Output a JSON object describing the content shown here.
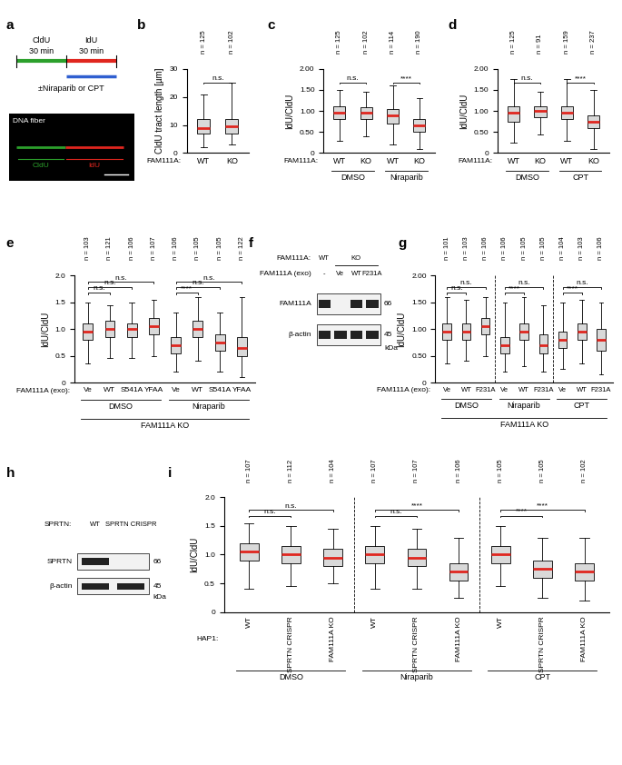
{
  "chart_data": [
    {
      "panel": "b",
      "type": "box",
      "ylabel": "CldU tract length [µm]",
      "row_label": "FAM111A:",
      "categories": [
        "WT",
        "KO"
      ],
      "n_labels": [
        "n = 125",
        "n = 102"
      ],
      "median": [
        9.0,
        9.5
      ],
      "q1": [
        7.0,
        7.0
      ],
      "q3": [
        12.0,
        12.0
      ],
      "min": [
        2.0,
        3.0
      ],
      "max": [
        21.0,
        25.0
      ],
      "ylim": [
        0,
        30
      ],
      "yticks": [
        0,
        10,
        20,
        30
      ],
      "comparisons": [
        {
          "between": [
            0,
            1
          ],
          "label": "n.s."
        }
      ]
    },
    {
      "panel": "c",
      "type": "box",
      "ylabel": "IdU/CldU",
      "row_label": "FAM111A:",
      "categories": [
        "WT",
        "KO",
        "WT",
        "KO"
      ],
      "n_labels": [
        "n = 125",
        "n = 102",
        "n = 114",
        "n = 190"
      ],
      "groups": [
        {
          "label": "DMSO",
          "count": 2
        },
        {
          "label": "Niraparib",
          "count": 2
        }
      ],
      "median": [
        0.95,
        0.95,
        0.9,
        0.65
      ],
      "q1": [
        0.8,
        0.8,
        0.7,
        0.5
      ],
      "q3": [
        1.1,
        1.08,
        1.05,
        0.8
      ],
      "min": [
        0.3,
        0.4,
        0.2,
        0.1
      ],
      "max": [
        1.5,
        1.45,
        1.6,
        1.3
      ],
      "ylim": [
        0,
        2
      ],
      "yticks": [
        0,
        {
          "value": 0.5,
          "label": "0.50"
        },
        {
          "value": 1,
          "label": "1.00"
        },
        {
          "value": 1.5,
          "label": "1.50"
        },
        {
          "value": 2,
          "label": "2.00"
        }
      ],
      "comparisons": [
        {
          "between": [
            0,
            1
          ],
          "label": "n.s."
        },
        {
          "between": [
            2,
            3
          ],
          "label": "****"
        }
      ]
    },
    {
      "panel": "d",
      "type": "box",
      "ylabel": "IdU/CldU",
      "row_label": "FAM111A:",
      "categories": [
        "WT",
        "KO",
        "WT",
        "KO"
      ],
      "n_labels": [
        "n = 125",
        "n = 91",
        "n = 159",
        "n = 237"
      ],
      "groups": [
        {
          "label": "DMSO",
          "count": 2
        },
        {
          "label": "CPT",
          "count": 2
        }
      ],
      "median": [
        0.95,
        1.0,
        0.95,
        0.75
      ],
      "q1": [
        0.75,
        0.85,
        0.8,
        0.6
      ],
      "q3": [
        1.1,
        1.1,
        1.1,
        0.9
      ],
      "min": [
        0.25,
        0.45,
        0.3,
        0.1
      ],
      "max": [
        1.75,
        1.45,
        1.75,
        1.5
      ],
      "ylim": [
        0,
        2
      ],
      "yticks": [
        0,
        {
          "value": 0.5,
          "label": "0.50"
        },
        {
          "value": 1,
          "label": "1.00"
        },
        {
          "value": 1.5,
          "label": "1.50"
        },
        {
          "value": 2,
          "label": "2.00"
        }
      ],
      "comparisons": [
        {
          "between": [
            0,
            1
          ],
          "label": "n.s."
        },
        {
          "between": [
            2,
            3
          ],
          "label": "****"
        }
      ]
    },
    {
      "panel": "e",
      "type": "box",
      "ylabel": "IdU/CldU",
      "row_label": "FAM111A (exo):",
      "bottom_label": "FAM111A KO",
      "categories": [
        "Ve",
        "WT",
        "S541A",
        "YFAA",
        "Ve",
        "WT",
        "S541A",
        "YFAA"
      ],
      "n_labels": [
        "n = 103",
        "n = 121",
        "n = 106",
        "n = 107",
        "n = 106",
        "n = 105",
        "n = 105",
        "n = 122"
      ],
      "groups": [
        {
          "label": "DMSO",
          "count": 4
        },
        {
          "label": "Niraparib",
          "count": 4
        }
      ],
      "median": [
        0.95,
        1.0,
        1.0,
        1.05,
        0.7,
        1.0,
        0.75,
        0.65
      ],
      "q1": [
        0.8,
        0.85,
        0.85,
        0.9,
        0.55,
        0.85,
        0.6,
        0.5
      ],
      "q3": [
        1.1,
        1.15,
        1.1,
        1.2,
        0.85,
        1.15,
        0.9,
        0.85
      ],
      "min": [
        0.35,
        0.45,
        0.45,
        0.5,
        0.2,
        0.4,
        0.2,
        0.1
      ],
      "max": [
        1.5,
        1.45,
        1.5,
        1.55,
        1.3,
        1.6,
        1.3,
        1.6
      ],
      "ylim": [
        0,
        2
      ],
      "yticks": [
        0,
        0.5,
        {
          "value": 1,
          "label": "1.0"
        },
        1.5,
        {
          "value": 2,
          "label": "2.0"
        }
      ],
      "comparisons": [
        {
          "between": [
            0,
            1
          ],
          "label": "n.s."
        },
        {
          "between": [
            0,
            2
          ],
          "label": "n.s."
        },
        {
          "between": [
            0,
            3
          ],
          "label": "n.s."
        },
        {
          "between": [
            4,
            5
          ],
          "label": "****"
        },
        {
          "between": [
            4,
            6
          ],
          "label": "n.s."
        },
        {
          "between": [
            4,
            7
          ],
          "label": "n.s."
        }
      ]
    },
    {
      "panel": "g",
      "type": "box",
      "ylabel": "IdU/CldU",
      "row_label": "FAM111A (exo):",
      "bottom_label": "FAM111A KO",
      "categories": [
        "Ve",
        "WT",
        "F231A",
        "Ve",
        "WT",
        "F231A",
        "Ve",
        "WT",
        "F231A"
      ],
      "n_labels": [
        "n = 101",
        "n = 103",
        "n = 106",
        "n = 106",
        "n = 105",
        "n = 105",
        "n = 104",
        "n = 103",
        "n = 106"
      ],
      "groups": [
        {
          "label": "DMSO",
          "count": 3
        },
        {
          "label": "Niraparib",
          "count": 3
        },
        {
          "label": "CPT",
          "count": 3
        }
      ],
      "median": [
        0.95,
        0.95,
        1.05,
        0.7,
        0.95,
        0.7,
        0.8,
        0.95,
        0.8
      ],
      "q1": [
        0.8,
        0.8,
        0.9,
        0.55,
        0.8,
        0.55,
        0.65,
        0.8,
        0.6
      ],
      "q3": [
        1.1,
        1.1,
        1.2,
        0.85,
        1.1,
        0.9,
        0.95,
        1.1,
        1.0
      ],
      "min": [
        0.35,
        0.4,
        0.5,
        0.2,
        0.3,
        0.2,
        0.25,
        0.35,
        0.15
      ],
      "max": [
        1.6,
        1.55,
        1.6,
        1.5,
        1.6,
        1.45,
        1.5,
        1.55,
        1.5
      ],
      "ylim": [
        0,
        2
      ],
      "yticks": [
        0,
        {
          "value": 0.5,
          "label": "0.50"
        },
        {
          "value": 1,
          "label": "1.00"
        },
        {
          "value": 1.5,
          "label": "1.50"
        },
        {
          "value": 2,
          "label": "2.00"
        }
      ],
      "comparisons": [
        {
          "between": [
            0,
            1
          ],
          "label": "n.s."
        },
        {
          "between": [
            0,
            2
          ],
          "label": "n.s."
        },
        {
          "between": [
            3,
            4
          ],
          "label": "****"
        },
        {
          "between": [
            3,
            5
          ],
          "label": "n.s."
        },
        {
          "between": [
            6,
            7
          ],
          "label": "****"
        },
        {
          "between": [
            6,
            8
          ],
          "label": "n.s."
        }
      ]
    },
    {
      "panel": "i",
      "type": "box",
      "ylabel": "IdU/CldU",
      "row_label": "HAP1:",
      "categories": [
        "WT",
        "SPRTN CRISPR",
        "FAM111A KO",
        "WT",
        "SPRTN CRISPR",
        "FAM111A KO",
        "WT",
        "SPRTN CRISPR",
        "FAM111A KO"
      ],
      "n_labels": [
        "n = 107",
        "n = 112",
        "n = 104",
        "n = 107",
        "n = 107",
        "n = 106",
        "n = 105",
        "n = 105",
        "n = 102"
      ],
      "groups": [
        {
          "label": "DMSO",
          "count": 3
        },
        {
          "label": "Niraparib",
          "count": 3
        },
        {
          "label": "CPT",
          "count": 3
        }
      ],
      "median": [
        1.05,
        1.0,
        0.95,
        1.0,
        0.95,
        0.7,
        1.0,
        0.75,
        0.7
      ],
      "q1": [
        0.9,
        0.85,
        0.8,
        0.85,
        0.8,
        0.55,
        0.85,
        0.6,
        0.55
      ],
      "q3": [
        1.2,
        1.15,
        1.1,
        1.15,
        1.1,
        0.85,
        1.15,
        0.9,
        0.85
      ],
      "min": [
        0.4,
        0.45,
        0.5,
        0.4,
        0.4,
        0.25,
        0.45,
        0.25,
        0.2
      ],
      "max": [
        1.55,
        1.5,
        1.45,
        1.5,
        1.45,
        1.3,
        1.5,
        1.3,
        1.3
      ],
      "ylim": [
        0,
        2
      ],
      "yticks": [
        0,
        0.5,
        {
          "value": 1,
          "label": "1.0"
        },
        1.5,
        {
          "value": 2,
          "label": "2.0"
        }
      ],
      "comparisons": [
        {
          "between": [
            0,
            1
          ],
          "label": "n.s."
        },
        {
          "between": [
            0,
            2
          ],
          "label": "n.s."
        },
        {
          "between": [
            3,
            4
          ],
          "label": "n.s."
        },
        {
          "between": [
            3,
            5
          ],
          "label": "****"
        },
        {
          "between": [
            6,
            7
          ],
          "label": "****"
        },
        {
          "between": [
            6,
            8
          ],
          "label": "****"
        }
      ]
    }
  ],
  "schematic": {
    "panel": "a",
    "segments": [
      {
        "label": "CldU",
        "duration": "30 min",
        "color": "#2ca02c"
      },
      {
        "label": "IdU",
        "duration": "30 min",
        "color": "#e0261f"
      }
    ],
    "treatment": "±Niraparib or CPT",
    "treatment_color": "#2f5fd0",
    "image_label": "DNA fiber"
  },
  "blots": [
    {
      "panel": "f",
      "lanes": 4,
      "header": [
        {
          "label": "FAM111A:",
          "groups": [
            {
              "text": "WT",
              "lanes": 1
            },
            {
              "text": "KO",
              "lanes": 3
            }
          ]
        },
        {
          "label": "FAM111A (exo)",
          "groups": [
            {
              "text": "-",
              "lanes": 1
            },
            {
              "text": "Ve",
              "lanes": 1
            },
            {
              "text": "WT",
              "lanes": 1
            },
            {
              "text": "F231A",
              "lanes": 1
            }
          ]
        }
      ],
      "bands": [
        {
          "label": "FAM111A",
          "present": [
            true,
            false,
            true,
            true
          ],
          "marker": 66
        },
        {
          "label": "β-actin",
          "present": [
            true,
            true,
            true,
            true
          ],
          "marker": 45
        }
      ],
      "unit": "kDa"
    },
    {
      "panel": "h",
      "lanes": 2,
      "header": [
        {
          "label": "SPRTN:",
          "groups": [
            {
              "text": "WT",
              "lanes": 1
            },
            {
              "text": "SPRTN CRISPR",
              "lanes": 1
            }
          ]
        }
      ],
      "bands": [
        {
          "label": "SPRTN",
          "present": [
            true,
            false
          ],
          "marker": 66
        },
        {
          "label": "β-actin",
          "present": [
            true,
            true
          ],
          "marker": 45
        }
      ],
      "unit": "kDa"
    }
  ]
}
